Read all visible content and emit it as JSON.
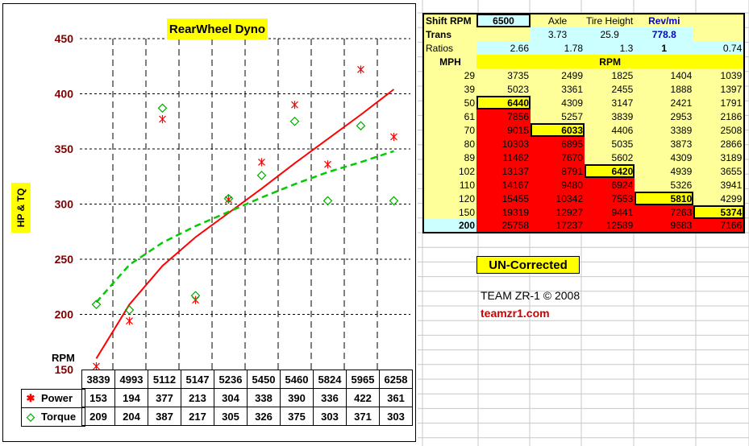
{
  "chart_data": {
    "type": "scatter",
    "title": "RearWheel Dyno",
    "ylabel": "HP & TQ",
    "xlabel": "RPM",
    "ylim": [
      150,
      450
    ],
    "yticks": [
      150,
      200,
      250,
      300,
      350,
      400,
      450
    ],
    "grid": "dashed",
    "x": [
      3839,
      4993,
      5112,
      5147,
      5236,
      5450,
      5460,
      5824,
      5965,
      6258
    ],
    "series": [
      {
        "name": "Power",
        "marker": "asterisk",
        "color": "#ff0000",
        "values": [
          153,
          194,
          377,
          213,
          304,
          338,
          390,
          336,
          422,
          361
        ],
        "trendline": [
          160,
          209,
          244,
          270,
          292,
          314,
          337,
          359,
          381,
          404
        ]
      },
      {
        "name": "Torque",
        "marker": "diamond",
        "color": "#00aa00",
        "values": [
          209,
          204,
          387,
          217,
          305,
          326,
          375,
          303,
          371,
          303
        ],
        "trendline": [
          211,
          245,
          265,
          280,
          293,
          306,
          318,
          329,
          338,
          348
        ]
      }
    ]
  },
  "table": {
    "header": {
      "shift_label": "Shift RPM",
      "shift_value": "6500",
      "axle_label": "Axle",
      "tire_label": "Tire Height",
      "rev_label": "Rev/mi",
      "trans_label": "Trans",
      "axle_value": "3.73",
      "tire_value": "25.9",
      "rev_value": "778.8",
      "ratios_label": "Ratios",
      "ratios": [
        "2.66",
        "1.78",
        "1.3",
        "1",
        "0.74"
      ],
      "mph_label": "MPH",
      "rpm_label": "RPM"
    },
    "rows": [
      {
        "mph": "29",
        "rpm": [
          "3735",
          "2499",
          "1825",
          "1404",
          "1039"
        ]
      },
      {
        "mph": "39",
        "rpm": [
          "5023",
          "3361",
          "2455",
          "1888",
          "1397"
        ]
      },
      {
        "mph": "50",
        "rpm": [
          "6440",
          "4309",
          "3147",
          "2421",
          "1791"
        ]
      },
      {
        "mph": "61",
        "rpm": [
          "7856",
          "5257",
          "3839",
          "2953",
          "2186"
        ]
      },
      {
        "mph": "70",
        "rpm": [
          "9015",
          "6033",
          "4406",
          "3389",
          "2508"
        ]
      },
      {
        "mph": "80",
        "rpm": [
          "10303",
          "6895",
          "5035",
          "3873",
          "2866"
        ]
      },
      {
        "mph": "89",
        "rpm": [
          "11462",
          "7670",
          "5602",
          "4309",
          "3189"
        ]
      },
      {
        "mph": "102",
        "rpm": [
          "13137",
          "8791",
          "6420",
          "4939",
          "3655"
        ]
      },
      {
        "mph": "110",
        "rpm": [
          "14167",
          "9480",
          "6924",
          "5326",
          "3941"
        ]
      },
      {
        "mph": "120",
        "rpm": [
          "15455",
          "10342",
          "7553",
          "5810",
          "4299"
        ]
      },
      {
        "mph": "150",
        "rpm": [
          "19319",
          "12927",
          "9441",
          "7263",
          "5374"
        ]
      },
      {
        "mph": "200",
        "rpm": [
          "25758",
          "17237",
          "12589",
          "9683",
          "7166"
        ]
      }
    ],
    "shift_threshold": 6500
  },
  "notes": {
    "corrected": "UN-Corrected",
    "team": "TEAM ZR-1 © 2008",
    "site": "teamzr1.com"
  }
}
